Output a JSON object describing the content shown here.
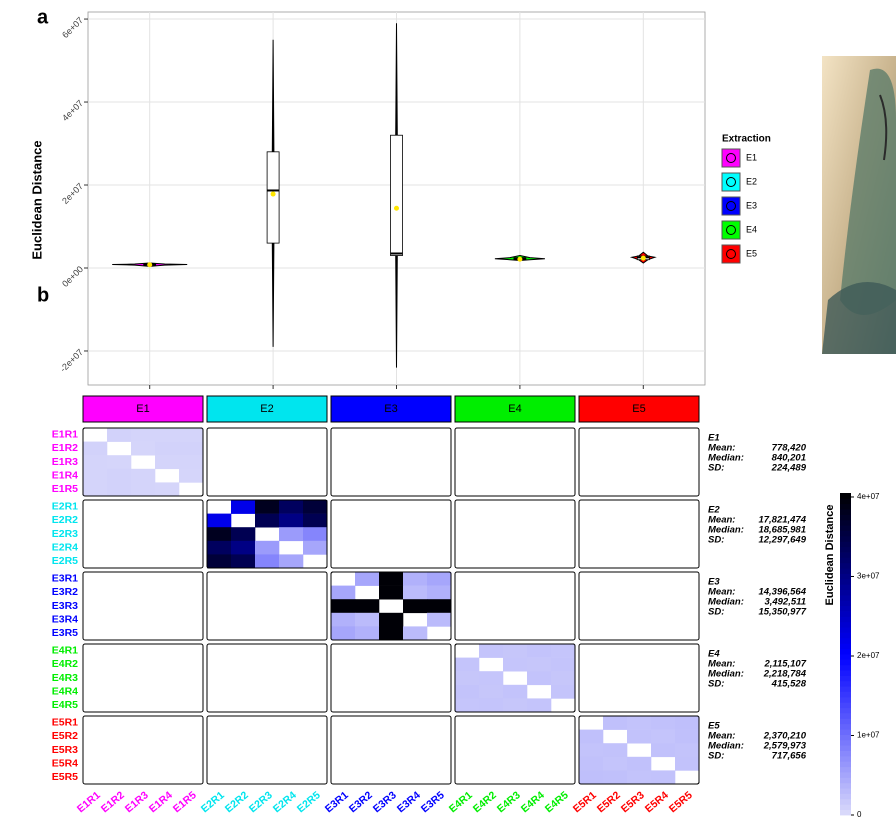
{
  "chart_data": [
    {
      "type": "violin",
      "panel": "a",
      "y_label": "Euclidean Distance",
      "ylim": [
        -28200000,
        61700000
      ],
      "yticks": [
        {
          "value": -20000000,
          "label": "-2e+07"
        },
        {
          "value": 0,
          "label": "0e+00"
        },
        {
          "value": 20000000,
          "label": "2e+07"
        },
        {
          "value": 40000000,
          "label": "4e+07"
        },
        {
          "value": 60000000,
          "label": "6e+07"
        }
      ],
      "grid": true,
      "legend_title": "Extraction",
      "series": [
        {
          "name": "E1",
          "color": "#ff00ff",
          "min": 400000,
          "q1": 700000,
          "median": 840201,
          "q3": 950000,
          "max": 1200000,
          "mean": 778420
        },
        {
          "name": "E2",
          "color": "#00ffff",
          "min": -19000000,
          "q1": 6000000,
          "median": 18685981,
          "q3": 28000000,
          "max": 55000000,
          "mean": 17821474
        },
        {
          "name": "E3",
          "color": "#0000ff",
          "min": -24000000,
          "q1": 3000000,
          "median": 3492511,
          "q3": 32000000,
          "max": 59000000,
          "mean": 14396564
        },
        {
          "name": "E4",
          "color": "#00ff00",
          "min": 1800000,
          "q1": 2000000,
          "median": 2218784,
          "q3": 2500000,
          "max": 3000000,
          "mean": 2115107
        },
        {
          "name": "E5",
          "color": "#ff0000",
          "min": 1200000,
          "q1": 2000000,
          "median": 2579973,
          "q3": 2900000,
          "max": 3800000,
          "mean": 2370210
        }
      ]
    },
    {
      "type": "heatmap",
      "panel": "b",
      "stat_labels": [
        "Mean:",
        "Median:",
        "SD:"
      ],
      "colorbar_title": "Euclidean Distance",
      "colorbar_lim": [
        0,
        40500000
      ],
      "colorbar_ticks": [
        0,
        {
          "value": 10000000,
          "label": "1e+07"
        },
        {
          "value": 20000000,
          "label": "2e+07"
        },
        {
          "value": 30000000,
          "label": "3e+07"
        },
        {
          "value": 40000000,
          "label": "4e+07"
        }
      ],
      "colorscale": [
        "#dcdcfa",
        "#0000ff",
        "#000000"
      ],
      "groups": [
        {
          "name": "E1",
          "color": "#ff00ff",
          "rows": [
            "E1R1",
            "E1R2",
            "E1R3",
            "E1R4",
            "E1R5"
          ],
          "values": [
            [
              null,
              900000,
              700000,
              700000,
              700000
            ],
            [
              900000,
              null,
              600000,
              900000,
              900000
            ],
            [
              700000,
              600000,
              null,
              700000,
              700000
            ],
            [
              700000,
              900000,
              700000,
              null,
              600000
            ],
            [
              700000,
              900000,
              700000,
              600000,
              null
            ]
          ],
          "stats": [
            "778,420",
            "840,201",
            "224,489"
          ]
        },
        {
          "name": "E2",
          "color": "#00e5ee",
          "rows": [
            "E2R1",
            "E2R2",
            "E2R3",
            "E2R4",
            "E2R5"
          ],
          "values": [
            [
              null,
              22000000,
              38000000,
              33000000,
              36000000
            ],
            [
              22000000,
              null,
              34000000,
              30000000,
              34000000
            ],
            [
              38000000,
              34000000,
              null,
              6000000,
              8000000
            ],
            [
              33000000,
              30000000,
              6000000,
              null,
              5000000
            ],
            [
              36000000,
              34000000,
              8000000,
              5000000,
              null
            ]
          ],
          "stats": [
            "17,821,474",
            "18,685,981",
            "12,297,649"
          ]
        },
        {
          "name": "E3",
          "color": "#0000ff",
          "rows": [
            "E3R1",
            "E3R2",
            "E3R3",
            "E3R4",
            "E3R5"
          ],
          "values": [
            [
              null,
              5000000,
              40000000,
              4000000,
              5000000
            ],
            [
              5000000,
              null,
              40000000,
              3000000,
              4000000
            ],
            [
              40000000,
              40000000,
              null,
              40000000,
              40000000
            ],
            [
              4000000,
              3000000,
              40000000,
              null,
              3000000
            ],
            [
              5000000,
              4000000,
              40000000,
              3000000,
              null
            ]
          ],
          "stats": [
            "14,396,564",
            "3,492,511",
            "15,350,977"
          ]
        },
        {
          "name": "E4",
          "color": "#00ee00",
          "rows": [
            "E4R1",
            "E4R2",
            "E4R3",
            "E4R4",
            "E4R5"
          ],
          "values": [
            [
              null,
              2200000,
              2000000,
              2300000,
              2100000
            ],
            [
              2200000,
              null,
              2100000,
              2000000,
              2200000
            ],
            [
              2000000,
              2100000,
              null,
              2300000,
              2000000
            ],
            [
              2300000,
              2000000,
              2300000,
              null,
              2200000
            ],
            [
              2100000,
              2200000,
              2000000,
              2200000,
              null
            ]
          ],
          "stats": [
            "2,115,107",
            "2,218,784",
            "415,528"
          ]
        },
        {
          "name": "E5",
          "color": "#ff0000",
          "rows": [
            "E5R1",
            "E5R2",
            "E5R3",
            "E5R4",
            "E5R5"
          ],
          "values": [
            [
              null,
              2600000,
              2300000,
              2500000,
              2700000
            ],
            [
              2600000,
              null,
              2400000,
              2200000,
              2600000
            ],
            [
              2300000,
              2400000,
              null,
              2500000,
              2300000
            ],
            [
              2500000,
              2200000,
              2500000,
              null,
              2400000
            ],
            [
              2700000,
              2600000,
              2300000,
              2400000,
              null
            ]
          ],
          "stats": [
            "2,370,210",
            "2,579,973",
            "717,656"
          ]
        }
      ]
    }
  ]
}
